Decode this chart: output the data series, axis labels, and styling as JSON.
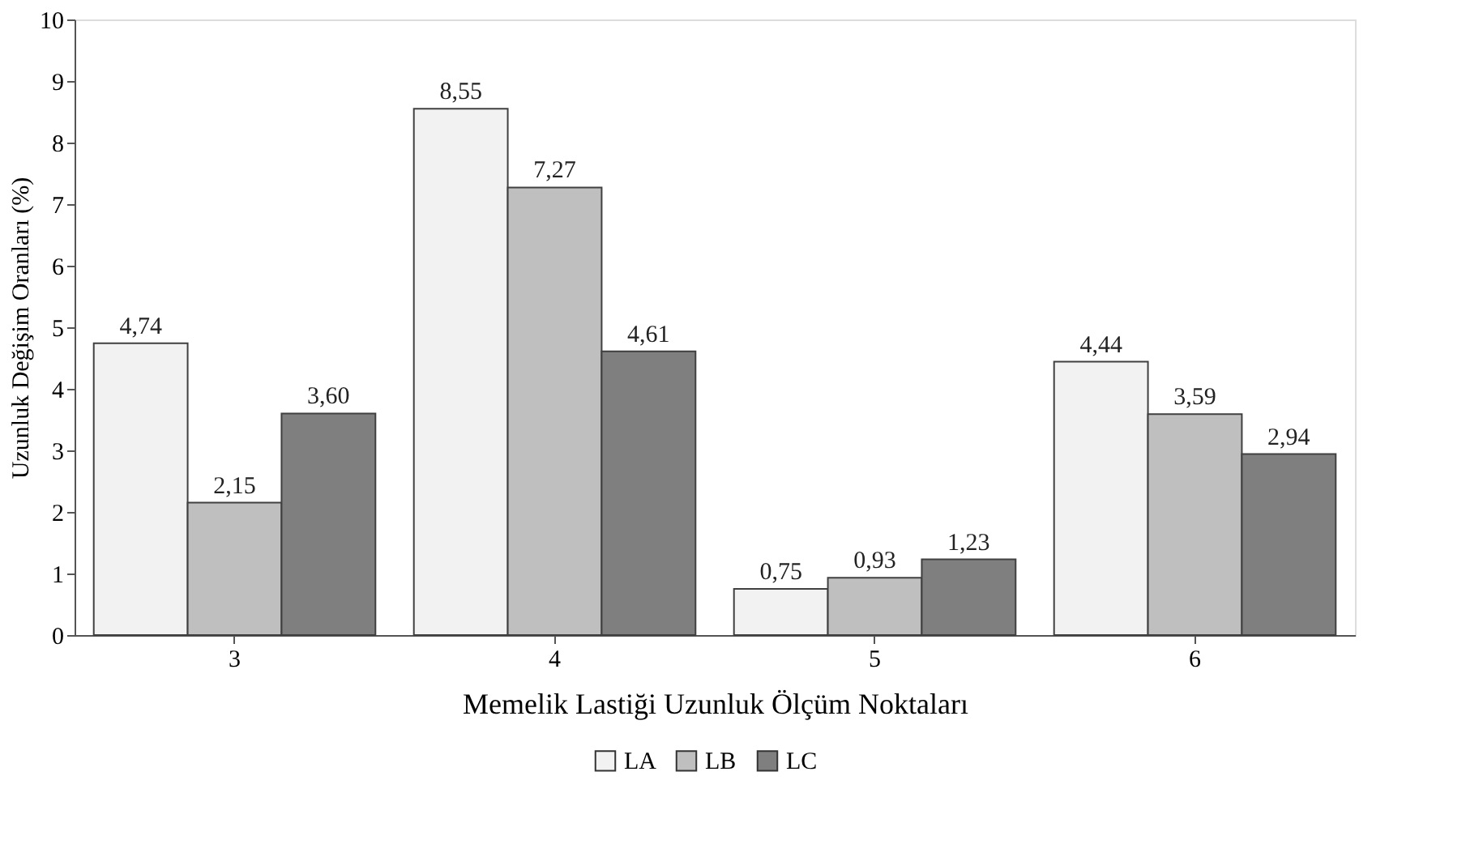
{
  "chart_data": {
    "type": "bar",
    "xlabel": "Memelik Lastiği Uzunluk  Ölçüm Noktaları",
    "ylabel": "Uzunluk Değişim Oranları (%)",
    "categories": [
      "3",
      "4",
      "5",
      "6"
    ],
    "series": [
      {
        "name": "LA",
        "color": "#f2f2f2",
        "values": [
          4.74,
          8.55,
          0.75,
          4.44
        ],
        "value_labels": [
          "4,74",
          "8,55",
          "0,75",
          "4,44"
        ]
      },
      {
        "name": "LB",
        "color": "#bfbfbf",
        "values": [
          2.15,
          7.27,
          0.93,
          3.59
        ],
        "value_labels": [
          "2,15",
          "7,27",
          "0,93",
          "3,59"
        ]
      },
      {
        "name": "LC",
        "color": "#7f7f7f",
        "values": [
          3.6,
          4.61,
          1.23,
          2.94
        ],
        "value_labels": [
          "3,60",
          "4,61",
          "1,23",
          "2,94"
        ]
      }
    ],
    "ylim": [
      0,
      10
    ],
    "yticks": [
      0,
      1,
      2,
      3,
      4,
      5,
      6,
      7,
      8,
      9,
      10
    ],
    "grid": false,
    "legend": "bottom"
  }
}
